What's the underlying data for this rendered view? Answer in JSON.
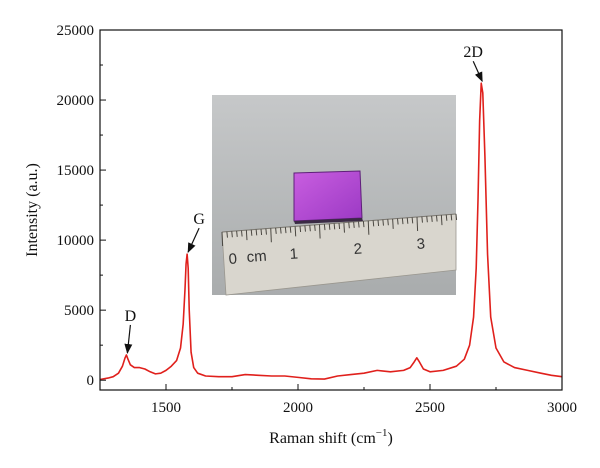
{
  "chart_data": {
    "type": "line",
    "xlabel": "Raman shift (cm",
    "xlabel_sup": "−1",
    "xlabel_tail": ")",
    "ylabel": "Intensity (a.u.)",
    "xlim": [
      1250,
      3000
    ],
    "ylim": [
      -700,
      25000
    ],
    "x_ticks": [
      1500,
      2000,
      2500,
      3000
    ],
    "y_ticks": [
      0,
      5000,
      10000,
      15000,
      20000,
      25000
    ],
    "grid": false,
    "line_color": "#e0201c",
    "series": [
      {
        "x": [
          1250,
          1280,
          1300,
          1320,
          1335,
          1345,
          1350,
          1356,
          1365,
          1380,
          1400,
          1420,
          1440,
          1460,
          1480,
          1500,
          1520,
          1540,
          1555,
          1565,
          1572,
          1576,
          1580,
          1584,
          1588,
          1595,
          1605,
          1620,
          1650,
          1700,
          1750,
          1800,
          1850,
          1900,
          1950,
          2000,
          2050,
          2100,
          2150,
          2200,
          2250,
          2300,
          2350,
          2400,
          2425,
          2440,
          2450,
          2460,
          2475,
          2500,
          2550,
          2600,
          2630,
          2650,
          2665,
          2675,
          2682,
          2688,
          2694,
          2700,
          2708,
          2718,
          2730,
          2750,
          2780,
          2820,
          2870,
          2920,
          2960,
          3000
        ],
        "y": [
          50,
          150,
          250,
          500,
          1000,
          1600,
          1800,
          1500,
          1100,
          900,
          900,
          800,
          600,
          450,
          500,
          700,
          1000,
          1400,
          2300,
          4000,
          6500,
          8300,
          9000,
          8000,
          5000,
          2000,
          900,
          500,
          300,
          250,
          250,
          400,
          350,
          300,
          300,
          200,
          100,
          80,
          300,
          400,
          500,
          700,
          600,
          700,
          900,
          1300,
          1600,
          1300,
          800,
          600,
          700,
          1000,
          1500,
          2500,
          4500,
          8000,
          13000,
          18500,
          21200,
          20500,
          16000,
          9000,
          4500,
          2300,
          1300,
          900,
          700,
          500,
          350,
          250
        ]
      }
    ],
    "annotations": [
      {
        "text": "D",
        "target_x": 1350,
        "target_y": 1800
      },
      {
        "text": "G",
        "target_x": 1580,
        "target_y": 9000
      },
      {
        "text": "2D",
        "target_x": 2694,
        "target_y": 21200
      }
    ],
    "inset": "photo-of-sample-on-ruler",
    "ruler_numbers": [
      "0",
      "cm",
      "1",
      "2",
      "3"
    ]
  },
  "colors": {
    "photo_background": "#b9bcbe",
    "sample_color": "#b84fd6",
    "ruler_color": "#d7d4cc"
  }
}
